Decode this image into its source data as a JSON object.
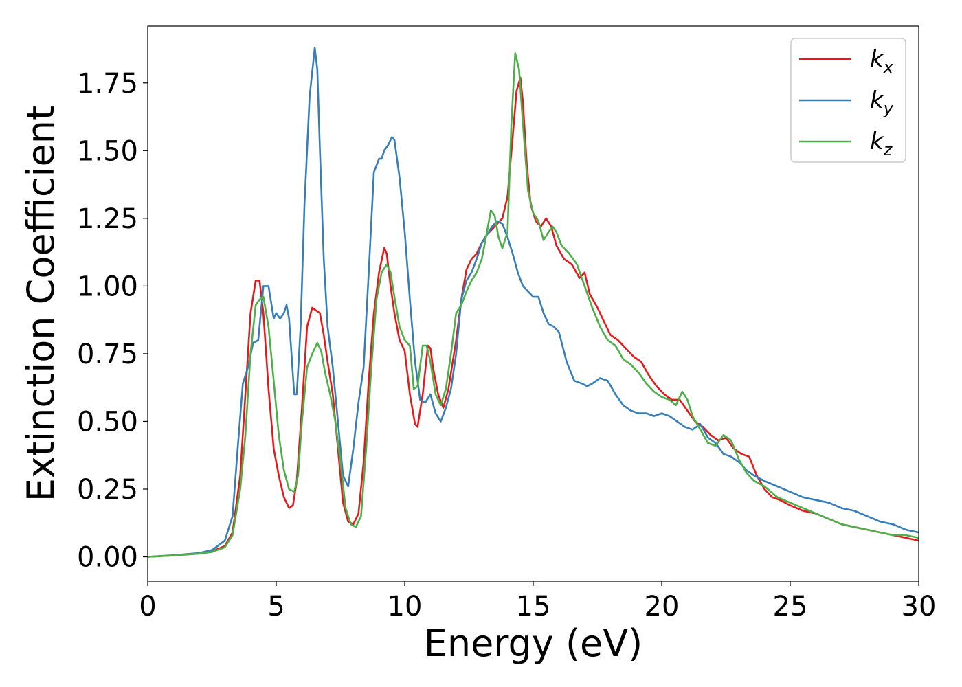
{
  "chart_data": {
    "type": "line",
    "title": "",
    "xlabel": "Energy (eV)",
    "ylabel": "Extinction Coefficient",
    "xlim": [
      0,
      30
    ],
    "ylim": [
      -0.09,
      1.96
    ],
    "xticks": [
      0,
      5,
      10,
      15,
      20,
      25,
      30
    ],
    "xtick_labels": [
      "0",
      "5",
      "10",
      "15",
      "20",
      "25",
      "30"
    ],
    "yticks": [
      0.0,
      0.25,
      0.5,
      0.75,
      1.0,
      1.25,
      1.5,
      1.75
    ],
    "ytick_labels": [
      "0.00",
      "0.25",
      "0.50",
      "0.75",
      "1.00",
      "1.25",
      "1.50",
      "1.75"
    ],
    "grid": false,
    "legend_position": "top-right",
    "series": [
      {
        "name": "k",
        "subscript": "x",
        "color": "#e41a1c",
        "x": [
          0,
          1,
          2,
          2.5,
          3.0,
          3.3,
          3.6,
          3.8,
          4.0,
          4.2,
          4.35,
          4.5,
          4.7,
          4.9,
          5.1,
          5.3,
          5.5,
          5.65,
          5.8,
          6.0,
          6.2,
          6.4,
          6.55,
          6.7,
          6.85,
          7.0,
          7.2,
          7.4,
          7.6,
          7.8,
          8.0,
          8.2,
          8.4,
          8.6,
          8.8,
          9.0,
          9.2,
          9.3,
          9.45,
          9.6,
          9.8,
          10.0,
          10.2,
          10.4,
          10.5,
          10.7,
          10.9,
          11.0,
          11.1,
          11.3,
          11.5,
          11.7,
          12.0,
          12.2,
          12.4,
          12.6,
          12.8,
          13.0,
          13.2,
          13.4,
          13.6,
          13.8,
          14.0,
          14.2,
          14.35,
          14.5,
          14.6,
          14.75,
          14.9,
          15.1,
          15.3,
          15.5,
          15.7,
          15.9,
          16.2,
          16.5,
          16.8,
          17.0,
          17.2,
          17.5,
          17.8,
          18.0,
          18.3,
          18.6,
          18.9,
          19.2,
          19.5,
          19.8,
          20.1,
          20.4,
          20.7,
          21.0,
          21.3,
          21.6,
          21.9,
          22.2,
          22.5,
          22.8,
          23.1,
          23.4,
          23.7,
          24.0,
          24.3,
          24.6,
          25.0,
          25.5,
          26.0,
          26.5,
          27.0,
          27.5,
          28.0,
          28.5,
          29.0,
          29.5,
          30.0
        ],
        "y": [
          0.0,
          0.005,
          0.012,
          0.02,
          0.04,
          0.09,
          0.3,
          0.6,
          0.9,
          1.02,
          1.02,
          0.9,
          0.62,
          0.4,
          0.3,
          0.22,
          0.18,
          0.19,
          0.28,
          0.55,
          0.85,
          0.92,
          0.91,
          0.9,
          0.82,
          0.72,
          0.6,
          0.4,
          0.2,
          0.13,
          0.12,
          0.16,
          0.35,
          0.65,
          0.9,
          1.05,
          1.14,
          1.12,
          1.0,
          0.9,
          0.8,
          0.76,
          0.6,
          0.49,
          0.48,
          0.6,
          0.78,
          0.77,
          0.7,
          0.6,
          0.55,
          0.62,
          0.8,
          0.95,
          1.06,
          1.1,
          1.12,
          1.16,
          1.19,
          1.21,
          1.23,
          1.25,
          1.33,
          1.55,
          1.72,
          1.77,
          1.68,
          1.45,
          1.3,
          1.24,
          1.22,
          1.25,
          1.22,
          1.15,
          1.1,
          1.08,
          1.03,
          1.05,
          0.97,
          0.92,
          0.86,
          0.82,
          0.8,
          0.77,
          0.74,
          0.72,
          0.67,
          0.63,
          0.6,
          0.58,
          0.58,
          0.54,
          0.5,
          0.48,
          0.45,
          0.43,
          0.44,
          0.4,
          0.38,
          0.37,
          0.3,
          0.25,
          0.22,
          0.21,
          0.19,
          0.17,
          0.16,
          0.14,
          0.12,
          0.11,
          0.1,
          0.09,
          0.08,
          0.07,
          0.06
        ]
      },
      {
        "name": "k",
        "subscript": "y",
        "color": "#377eb8",
        "x": [
          0,
          1,
          2,
          2.5,
          3.0,
          3.3,
          3.5,
          3.7,
          3.9,
          4.1,
          4.3,
          4.5,
          4.7,
          4.9,
          5.0,
          5.15,
          5.3,
          5.4,
          5.5,
          5.7,
          5.8,
          5.95,
          6.1,
          6.3,
          6.5,
          6.6,
          6.7,
          6.85,
          7.0,
          7.2,
          7.4,
          7.6,
          7.8,
          8.0,
          8.2,
          8.4,
          8.6,
          8.8,
          9.0,
          9.1,
          9.2,
          9.35,
          9.5,
          9.6,
          9.8,
          10.0,
          10.2,
          10.4,
          10.6,
          10.8,
          11.0,
          11.2,
          11.4,
          11.6,
          11.8,
          12.0,
          12.2,
          12.4,
          12.6,
          12.8,
          13.0,
          13.2,
          13.4,
          13.6,
          13.8,
          14.0,
          14.2,
          14.4,
          14.6,
          14.8,
          15.0,
          15.2,
          15.4,
          15.6,
          15.8,
          16.0,
          16.3,
          16.6,
          16.9,
          17.1,
          17.3,
          17.6,
          17.9,
          18.2,
          18.5,
          18.8,
          19.1,
          19.4,
          19.7,
          20.0,
          20.3,
          20.6,
          20.9,
          21.2,
          21.5,
          21.8,
          22.1,
          22.4,
          22.7,
          23.0,
          23.3,
          23.6,
          24.0,
          24.5,
          25.0,
          25.5,
          26.0,
          26.5,
          27.0,
          27.5,
          28.0,
          28.5,
          29.0,
          29.5,
          30.0
        ],
        "y": [
          0.0,
          0.006,
          0.014,
          0.025,
          0.06,
          0.15,
          0.4,
          0.64,
          0.7,
          0.79,
          0.8,
          1.0,
          1.0,
          0.88,
          0.9,
          0.88,
          0.9,
          0.93,
          0.88,
          0.6,
          0.6,
          0.85,
          1.3,
          1.7,
          1.88,
          1.8,
          1.5,
          1.1,
          0.85,
          0.7,
          0.5,
          0.3,
          0.26,
          0.4,
          0.57,
          0.7,
          1.05,
          1.42,
          1.47,
          1.47,
          1.5,
          1.52,
          1.55,
          1.54,
          1.4,
          1.2,
          0.95,
          0.72,
          0.58,
          0.57,
          0.6,
          0.53,
          0.5,
          0.55,
          0.62,
          0.75,
          0.95,
          1.02,
          1.05,
          1.1,
          1.16,
          1.19,
          1.22,
          1.24,
          1.23,
          1.18,
          1.12,
          1.05,
          1.0,
          0.98,
          0.96,
          0.96,
          0.9,
          0.86,
          0.85,
          0.83,
          0.72,
          0.65,
          0.64,
          0.63,
          0.64,
          0.66,
          0.65,
          0.6,
          0.56,
          0.54,
          0.53,
          0.53,
          0.52,
          0.53,
          0.52,
          0.5,
          0.48,
          0.47,
          0.49,
          0.44,
          0.42,
          0.38,
          0.37,
          0.35,
          0.32,
          0.3,
          0.28,
          0.26,
          0.24,
          0.22,
          0.21,
          0.2,
          0.18,
          0.17,
          0.15,
          0.13,
          0.12,
          0.1,
          0.09
        ]
      },
      {
        "name": "k",
        "subscript": "z",
        "color": "#4daf4a",
        "x": [
          0,
          1,
          2,
          2.5,
          3.0,
          3.3,
          3.6,
          3.8,
          4.0,
          4.2,
          4.35,
          4.5,
          4.7,
          4.9,
          5.1,
          5.3,
          5.5,
          5.7,
          5.85,
          6.0,
          6.2,
          6.4,
          6.6,
          6.75,
          6.9,
          7.1,
          7.3,
          7.5,
          7.7,
          7.9,
          8.1,
          8.3,
          8.5,
          8.7,
          8.9,
          9.1,
          9.3,
          9.45,
          9.6,
          9.8,
          10.0,
          10.2,
          10.35,
          10.5,
          10.7,
          10.85,
          11.0,
          11.2,
          11.4,
          11.6,
          11.8,
          12.0,
          12.2,
          12.4,
          12.6,
          12.8,
          13.0,
          13.2,
          13.35,
          13.5,
          13.65,
          13.8,
          14.0,
          14.15,
          14.3,
          14.45,
          14.6,
          14.8,
          15.0,
          15.2,
          15.4,
          15.6,
          15.75,
          15.9,
          16.1,
          16.4,
          16.7,
          17.0,
          17.3,
          17.6,
          17.9,
          18.2,
          18.5,
          18.8,
          19.1,
          19.4,
          19.7,
          20.0,
          20.3,
          20.55,
          20.8,
          21.0,
          21.2,
          21.5,
          21.8,
          22.1,
          22.4,
          22.7,
          23.0,
          23.3,
          23.6,
          24.0,
          24.5,
          25.0,
          25.5,
          26.0,
          26.5,
          27.0,
          27.5,
          28.0,
          28.5,
          29.0,
          29.5,
          30.0
        ],
        "y": [
          0.0,
          0.005,
          0.012,
          0.018,
          0.035,
          0.08,
          0.25,
          0.45,
          0.75,
          0.93,
          0.95,
          0.96,
          0.85,
          0.65,
          0.45,
          0.32,
          0.25,
          0.24,
          0.3,
          0.5,
          0.7,
          0.75,
          0.79,
          0.76,
          0.68,
          0.6,
          0.5,
          0.35,
          0.18,
          0.12,
          0.11,
          0.15,
          0.4,
          0.7,
          0.95,
          1.05,
          1.08,
          1.05,
          0.96,
          0.85,
          0.8,
          0.78,
          0.62,
          0.63,
          0.78,
          0.78,
          0.72,
          0.6,
          0.56,
          0.62,
          0.75,
          0.9,
          0.93,
          0.98,
          1.02,
          1.05,
          1.1,
          1.2,
          1.28,
          1.26,
          1.18,
          1.14,
          1.2,
          1.6,
          1.86,
          1.8,
          1.6,
          1.35,
          1.27,
          1.24,
          1.17,
          1.2,
          1.22,
          1.2,
          1.15,
          1.12,
          1.08,
          1.0,
          0.92,
          0.85,
          0.8,
          0.78,
          0.73,
          0.71,
          0.68,
          0.64,
          0.61,
          0.59,
          0.58,
          0.56,
          0.61,
          0.58,
          0.52,
          0.47,
          0.42,
          0.41,
          0.45,
          0.43,
          0.36,
          0.31,
          0.28,
          0.26,
          0.22,
          0.2,
          0.18,
          0.16,
          0.14,
          0.12,
          0.11,
          0.1,
          0.09,
          0.08,
          0.08,
          0.07
        ]
      }
    ]
  }
}
